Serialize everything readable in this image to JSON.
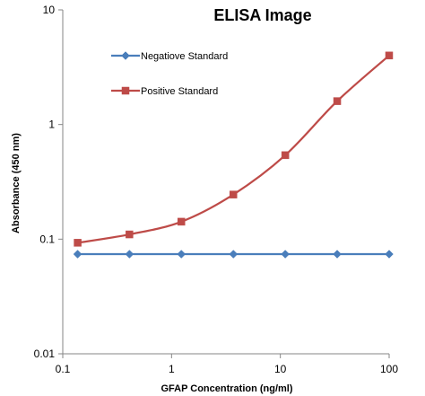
{
  "chart_data": {
    "type": "line",
    "title": "ELISA Image",
    "xlabel": "GFAP Concentration (ng/ml)",
    "ylabel": "Absorbance (450 nm)",
    "x_scale": "log",
    "y_scale": "log",
    "xlim": [
      0.1,
      100
    ],
    "ylim": [
      0.01,
      10
    ],
    "x_ticks": [
      {
        "value": 0.1,
        "label": "0.1"
      },
      {
        "value": 1,
        "label": "1"
      },
      {
        "value": 10,
        "label": "10"
      },
      {
        "value": 100,
        "label": "100"
      }
    ],
    "y_ticks": [
      {
        "value": 0.01,
        "label": "0.01"
      },
      {
        "value": 0.1,
        "label": "0.1"
      },
      {
        "value": 1,
        "label": "1"
      },
      {
        "value": 10,
        "label": "10"
      }
    ],
    "grid": false,
    "legend_position": "top-left",
    "series": [
      {
        "name": "Negatiove Standard",
        "color": "#4a7ebb",
        "marker": "diamond",
        "x": [
          0.137,
          0.41,
          1.23,
          3.7,
          11.1,
          33.3,
          100
        ],
        "y": [
          0.074,
          0.074,
          0.074,
          0.074,
          0.074,
          0.074,
          0.074
        ]
      },
      {
        "name": "Positive Standard",
        "color": "#be4b48",
        "marker": "square",
        "x": [
          0.137,
          0.41,
          1.23,
          3.7,
          11.1,
          33.3,
          100
        ],
        "y": [
          0.093,
          0.11,
          0.142,
          0.245,
          0.54,
          1.6,
          4.0
        ]
      }
    ]
  }
}
